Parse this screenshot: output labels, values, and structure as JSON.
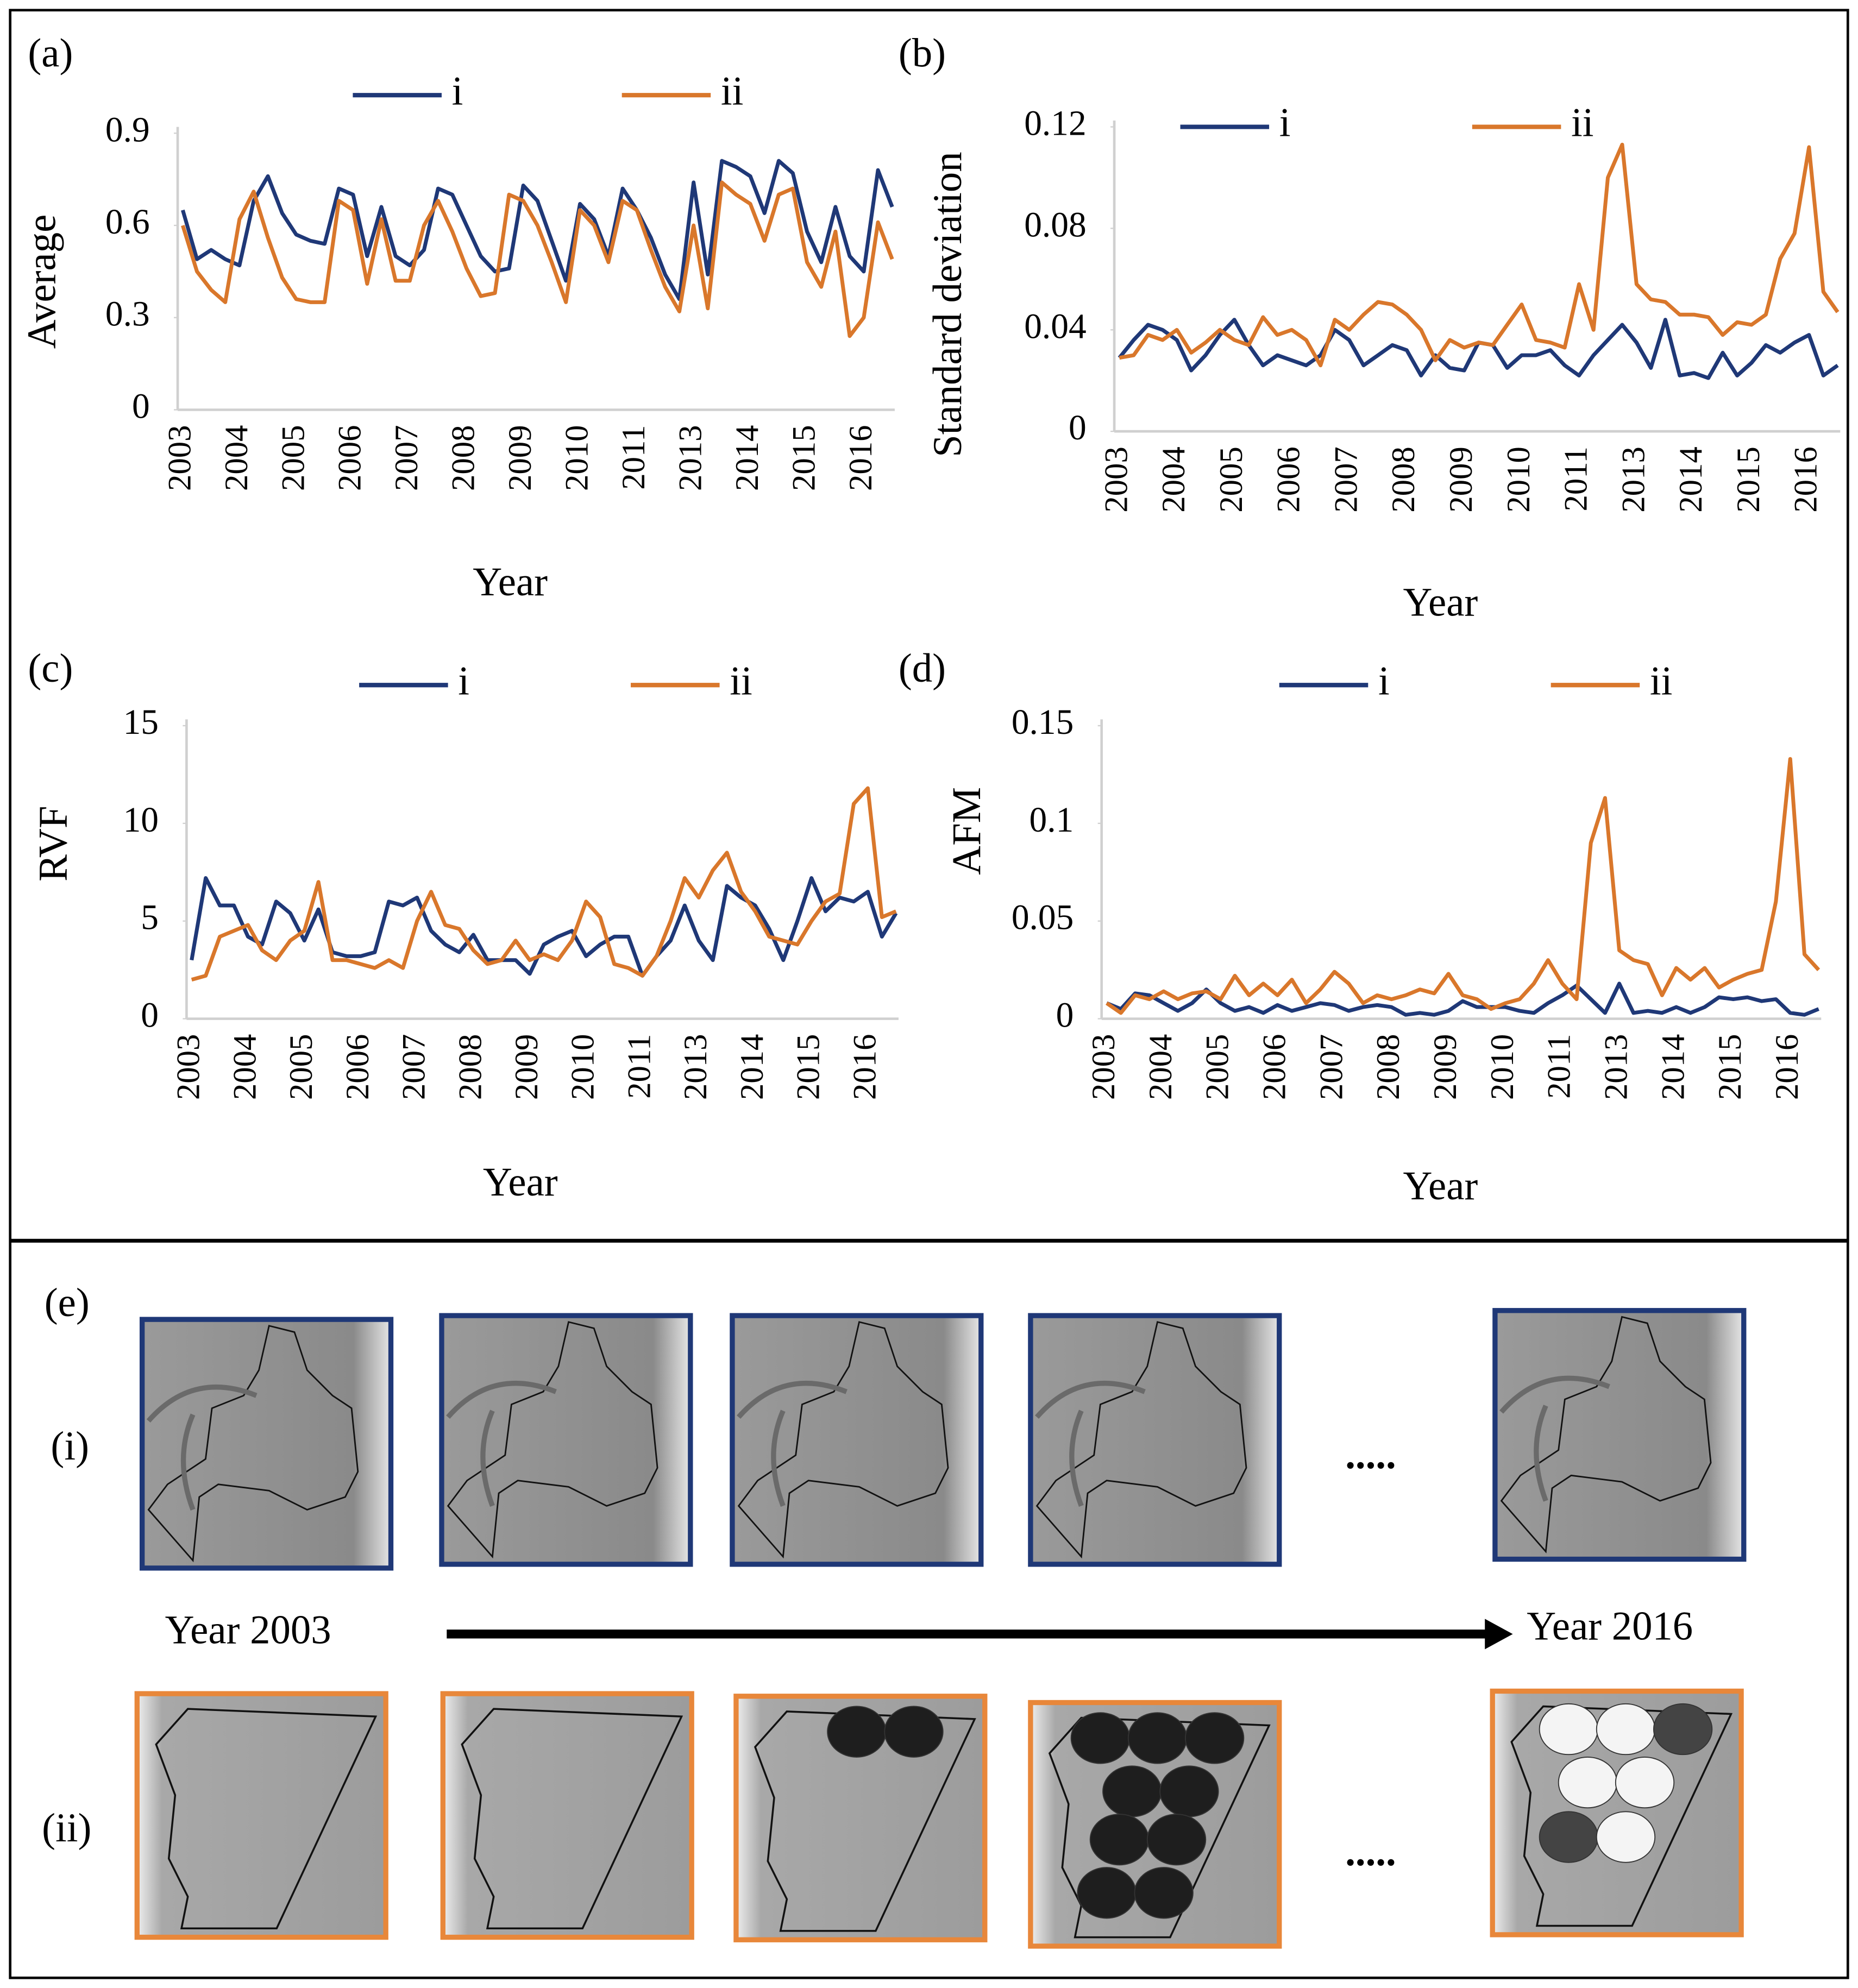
{
  "chart_data": [
    {
      "type": "line",
      "title": "(a)",
      "ylabel": "Average",
      "xlabel": "Year",
      "categories": [
        "2003",
        null,
        null,
        null,
        "2004",
        null,
        null,
        null,
        "2005",
        null,
        null,
        null,
        "2006",
        null,
        null,
        null,
        "2007",
        null,
        null,
        null,
        "2008",
        null,
        null,
        null,
        "2009",
        null,
        null,
        null,
        "2010",
        null,
        null,
        null,
        "2011",
        null,
        null,
        null,
        "2013",
        null,
        null,
        null,
        "2014",
        null,
        null,
        null,
        "2015",
        null,
        null,
        null,
        "2016",
        null,
        null
      ],
      "ylim": [
        0,
        0.9
      ],
      "yticks": [
        0,
        0.3,
        0.6,
        0.9
      ],
      "series": [
        {
          "name": "i",
          "color": "#1f3877",
          "values": [
            0.65,
            0.49,
            0.52,
            0.49,
            0.47,
            0.68,
            0.76,
            0.64,
            0.57,
            0.55,
            0.54,
            0.72,
            0.7,
            0.5,
            0.66,
            0.5,
            0.47,
            0.52,
            0.72,
            0.7,
            0.6,
            0.5,
            0.45,
            0.46,
            0.73,
            0.68,
            0.55,
            0.42,
            0.67,
            0.62,
            0.5,
            0.72,
            0.65,
            0.56,
            0.44,
            0.36,
            0.74,
            0.44,
            0.81,
            0.79,
            0.76,
            0.64,
            0.81,
            0.77,
            0.58,
            0.48,
            0.66,
            0.5,
            0.45,
            0.78,
            0.66
          ]
        },
        {
          "name": "ii",
          "color": "#d9772b",
          "values": [
            0.6,
            0.45,
            0.39,
            0.35,
            0.62,
            0.71,
            0.56,
            0.43,
            0.36,
            0.35,
            0.35,
            0.68,
            0.65,
            0.41,
            0.62,
            0.42,
            0.42,
            0.6,
            0.68,
            0.58,
            0.46,
            0.37,
            0.38,
            0.7,
            0.68,
            0.6,
            0.48,
            0.35,
            0.65,
            0.6,
            0.48,
            0.68,
            0.65,
            0.52,
            0.4,
            0.32,
            0.6,
            0.33,
            0.74,
            0.7,
            0.67,
            0.55,
            0.7,
            0.72,
            0.48,
            0.4,
            0.58,
            0.24,
            0.3,
            0.61,
            0.49
          ]
        }
      ]
    },
    {
      "type": "line",
      "title": "(b)",
      "ylabel": "Standard deviation",
      "xlabel": "Year",
      "categories": [
        "2003",
        null,
        null,
        null,
        "2004",
        null,
        null,
        null,
        "2005",
        null,
        null,
        null,
        "2006",
        null,
        null,
        null,
        "2007",
        null,
        null,
        null,
        "2008",
        null,
        null,
        null,
        "2009",
        null,
        null,
        null,
        "2010",
        null,
        null,
        null,
        "2011",
        null,
        null,
        null,
        "2013",
        null,
        null,
        null,
        "2014",
        null,
        null,
        null,
        "2015",
        null,
        null,
        null,
        "2016",
        null,
        null
      ],
      "ylim": [
        0,
        0.12
      ],
      "yticks": [
        0,
        0.04,
        0.08,
        0.12
      ],
      "series": [
        {
          "name": "i",
          "color": "#1f3877",
          "values": [
            0.029,
            0.036,
            0.042,
            0.04,
            0.036,
            0.024,
            0.03,
            0.038,
            0.044,
            0.034,
            0.026,
            0.03,
            0.028,
            0.026,
            0.03,
            0.04,
            0.036,
            0.026,
            0.03,
            0.034,
            0.032,
            0.022,
            0.03,
            0.025,
            0.024,
            0.035,
            0.034,
            0.025,
            0.03,
            0.03,
            0.032,
            0.026,
            0.022,
            0.03,
            0.036,
            0.042,
            0.035,
            0.025,
            0.044,
            0.022,
            0.023,
            0.021,
            0.031,
            0.022,
            0.027,
            0.034,
            0.031,
            0.035,
            0.038,
            0.022,
            0.026
          ]
        },
        {
          "name": "ii",
          "color": "#d9772b",
          "values": [
            0.029,
            0.03,
            0.038,
            0.036,
            0.04,
            0.031,
            0.035,
            0.04,
            0.036,
            0.034,
            0.045,
            0.038,
            0.04,
            0.036,
            0.026,
            0.044,
            0.04,
            0.046,
            0.051,
            0.05,
            0.046,
            0.04,
            0.028,
            0.036,
            0.033,
            0.035,
            0.034,
            0.042,
            0.05,
            0.036,
            0.035,
            0.033,
            0.058,
            0.04,
            0.1,
            0.113,
            0.058,
            0.052,
            0.051,
            0.046,
            0.046,
            0.045,
            0.038,
            0.043,
            0.042,
            0.046,
            0.068,
            0.078,
            0.112,
            0.055,
            0.047
          ]
        }
      ]
    },
    {
      "type": "line",
      "title": "(c)",
      "ylabel": "RVF",
      "xlabel": "Year",
      "categories": [
        "2003",
        null,
        null,
        null,
        "2004",
        null,
        null,
        null,
        "2005",
        null,
        null,
        null,
        "2006",
        null,
        null,
        null,
        "2007",
        null,
        null,
        null,
        "2008",
        null,
        null,
        null,
        "2009",
        null,
        null,
        null,
        "2010",
        null,
        null,
        null,
        "2011",
        null,
        null,
        null,
        "2013",
        null,
        null,
        null,
        "2014",
        null,
        null,
        null,
        "2015",
        null,
        null,
        null,
        "2016",
        null,
        null
      ],
      "ylim": [
        0,
        15
      ],
      "yticks": [
        0,
        5,
        10,
        15
      ],
      "series": [
        {
          "name": "i",
          "color": "#1f3877",
          "values": [
            3.0,
            7.2,
            5.8,
            5.8,
            4.2,
            3.8,
            6.0,
            5.4,
            4.0,
            5.6,
            3.4,
            3.2,
            3.2,
            3.4,
            6.0,
            5.8,
            6.2,
            4.5,
            3.8,
            3.4,
            4.3,
            3.0,
            3.0,
            3.0,
            2.3,
            3.8,
            4.2,
            4.5,
            3.2,
            3.8,
            4.2,
            4.2,
            2.2,
            3.2,
            4.0,
            5.8,
            4.0,
            3.0,
            6.8,
            6.2,
            5.8,
            4.6,
            3.0,
            5.0,
            7.2,
            5.5,
            6.2,
            6.0,
            6.5,
            4.2,
            5.4
          ]
        },
        {
          "name": "ii",
          "color": "#d9772b",
          "values": [
            2.0,
            2.2,
            4.2,
            4.5,
            4.8,
            3.5,
            3.0,
            4.0,
            4.5,
            7.0,
            3.0,
            3.0,
            2.8,
            2.6,
            3.0,
            2.6,
            5.0,
            6.5,
            4.8,
            4.6,
            3.5,
            2.8,
            3.0,
            4.0,
            3.0,
            3.3,
            3.0,
            4.0,
            6.0,
            5.2,
            2.8,
            2.6,
            2.2,
            3.2,
            5.0,
            7.2,
            6.2,
            7.6,
            8.5,
            6.5,
            5.5,
            4.2,
            4.0,
            3.8,
            5.0,
            6.0,
            6.4,
            11.0,
            11.8,
            5.2,
            5.5
          ]
        }
      ]
    },
    {
      "type": "line",
      "title": "(d)",
      "ylabel": "AFM",
      "xlabel": "Year",
      "categories": [
        "2003",
        null,
        null,
        null,
        "2004",
        null,
        null,
        null,
        "2005",
        null,
        null,
        null,
        "2006",
        null,
        null,
        null,
        "2007",
        null,
        null,
        null,
        "2008",
        null,
        null,
        null,
        "2009",
        null,
        null,
        null,
        "2010",
        null,
        null,
        null,
        "2011",
        null,
        null,
        null,
        "2013",
        null,
        null,
        null,
        "2014",
        null,
        null,
        null,
        "2015",
        null,
        null,
        null,
        "2016",
        null,
        null
      ],
      "ylim": [
        0,
        0.15
      ],
      "yticks": [
        0,
        0.05,
        0.1,
        0.15
      ],
      "series": [
        {
          "name": "i",
          "color": "#1f3877",
          "values": [
            0.008,
            0.005,
            0.013,
            0.012,
            0.008,
            0.004,
            0.008,
            0.015,
            0.008,
            0.004,
            0.006,
            0.003,
            0.007,
            0.004,
            0.006,
            0.008,
            0.007,
            0.004,
            0.006,
            0.007,
            0.006,
            0.002,
            0.003,
            0.002,
            0.004,
            0.009,
            0.006,
            0.006,
            0.006,
            0.004,
            0.003,
            0.008,
            0.012,
            0.017,
            0.01,
            0.003,
            0.018,
            0.003,
            0.004,
            0.003,
            0.006,
            0.003,
            0.006,
            0.011,
            0.01,
            0.011,
            0.009,
            0.01,
            0.003,
            0.002,
            0.005
          ]
        },
        {
          "name": "ii",
          "color": "#d9772b",
          "values": [
            0.008,
            0.003,
            0.012,
            0.01,
            0.014,
            0.01,
            0.013,
            0.014,
            0.01,
            0.022,
            0.012,
            0.018,
            0.012,
            0.02,
            0.008,
            0.015,
            0.024,
            0.018,
            0.008,
            0.012,
            0.01,
            0.012,
            0.015,
            0.013,
            0.023,
            0.012,
            0.01,
            0.005,
            0.008,
            0.01,
            0.018,
            0.03,
            0.018,
            0.01,
            0.09,
            0.113,
            0.035,
            0.03,
            0.028,
            0.012,
            0.026,
            0.02,
            0.026,
            0.016,
            0.02,
            0.023,
            0.025,
            0.06,
            0.133,
            0.033,
            0.025
          ]
        }
      ]
    }
  ],
  "panel_e": {
    "label": "(e)",
    "rows": [
      "(i)",
      "(ii)"
    ],
    "start": "Year 2003",
    "end": "Year 2016",
    "ellipsis": "....."
  }
}
